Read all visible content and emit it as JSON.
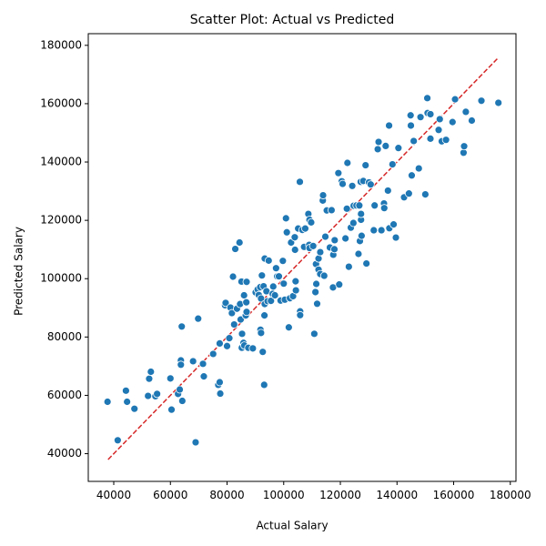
{
  "chart_data": {
    "type": "scatter",
    "title": "Scatter Plot: Actual vs Predicted",
    "xlabel": "Actual Salary",
    "ylabel": "Predicted Salary",
    "xlim": [
      31000,
      182000
    ],
    "ylim": [
      30500,
      184000
    ],
    "xticks": [
      40000,
      60000,
      80000,
      100000,
      120000,
      140000,
      160000,
      180000
    ],
    "yticks": [
      40000,
      60000,
      80000,
      100000,
      120000,
      140000,
      160000,
      180000
    ],
    "xtick_labels": [
      "40000",
      "60000",
      "80000",
      "100000",
      "120000",
      "140000",
      "160000",
      "180000"
    ],
    "ytick_labels": [
      "40000",
      "60000",
      "80000",
      "100000",
      "120000",
      "140000",
      "160000",
      "180000"
    ],
    "grid": false,
    "point_color": "#1f77b4",
    "point_edge_color": "#ffffff",
    "reference_line": {
      "style": "dashed",
      "color": "#d62728",
      "x": [
        38000,
        175500
      ],
      "y": [
        38000,
        175500
      ]
    },
    "series": [
      {
        "points": [
          [
            37800,
            57800
          ],
          [
            41400,
            44600
          ],
          [
            44300,
            61600
          ],
          [
            44700,
            57800
          ],
          [
            47300,
            55400
          ],
          [
            52100,
            59800
          ],
          [
            52500,
            65700
          ],
          [
            53100,
            68100
          ],
          [
            54700,
            59700
          ],
          [
            55300,
            60500
          ],
          [
            60000,
            65800
          ],
          [
            60400,
            55100
          ],
          [
            62700,
            60500
          ],
          [
            63300,
            62000
          ],
          [
            63700,
            72000
          ],
          [
            63700,
            70500
          ],
          [
            64000,
            83600
          ],
          [
            64200,
            58100
          ],
          [
            68000,
            71700
          ],
          [
            68900,
            43900
          ],
          [
            69800,
            86300
          ],
          [
            71500,
            70800
          ],
          [
            71800,
            66500
          ],
          [
            75100,
            74200
          ],
          [
            76900,
            63600
          ],
          [
            77400,
            64500
          ],
          [
            77400,
            77800
          ],
          [
            77600,
            60600
          ],
          [
            79300,
            90900
          ],
          [
            79500,
            91700
          ],
          [
            80000,
            76900
          ],
          [
            80800,
            79600
          ],
          [
            81200,
            90100
          ],
          [
            81700,
            88200
          ],
          [
            82100,
            100700
          ],
          [
            82500,
            84300
          ],
          [
            82900,
            110200
          ],
          [
            83500,
            89700
          ],
          [
            84400,
            112400
          ],
          [
            84600,
            91300
          ],
          [
            84800,
            86000
          ],
          [
            85100,
            99000
          ],
          [
            85200,
            76300
          ],
          [
            85300,
            81100
          ],
          [
            85800,
            78000
          ],
          [
            86000,
            94300
          ],
          [
            86100,
            77100
          ],
          [
            86600,
            87400
          ],
          [
            86800,
            91900
          ],
          [
            86900,
            88600
          ],
          [
            86900,
            98900
          ],
          [
            87500,
            76300
          ],
          [
            89100,
            76100
          ],
          [
            90100,
            95300
          ],
          [
            90800,
            96300
          ],
          [
            91200,
            94400
          ],
          [
            91700,
            97100
          ],
          [
            91800,
            82500
          ],
          [
            92000,
            93200
          ],
          [
            92000,
            81400
          ],
          [
            92300,
            101100
          ],
          [
            92600,
            74900
          ],
          [
            92900,
            97400
          ],
          [
            93100,
            63600
          ],
          [
            93200,
            87400
          ],
          [
            93300,
            91300
          ],
          [
            93300,
            106900
          ],
          [
            93900,
            95700
          ],
          [
            94300,
            92300
          ],
          [
            94700,
            106200
          ],
          [
            95500,
            92400
          ],
          [
            96100,
            94800
          ],
          [
            96300,
            97300
          ],
          [
            96900,
            94300
          ],
          [
            97300,
            103600
          ],
          [
            97700,
            100800
          ],
          [
            98300,
            100800
          ],
          [
            98900,
            92500
          ],
          [
            99700,
            106100
          ],
          [
            100000,
            98300
          ],
          [
            100400,
            92800
          ],
          [
            100800,
            120700
          ],
          [
            101100,
            115900
          ],
          [
            101800,
            83300
          ],
          [
            102200,
            93300
          ],
          [
            102600,
            112400
          ],
          [
            103300,
            94000
          ],
          [
            103900,
            114200
          ],
          [
            104000,
            109900
          ],
          [
            104200,
            99100
          ],
          [
            104300,
            96000
          ],
          [
            105100,
            117200
          ],
          [
            105700,
            133200
          ],
          [
            105800,
            88800
          ],
          [
            105800,
            87500
          ],
          [
            106600,
            116700
          ],
          [
            107200,
            110900
          ],
          [
            107600,
            117200
          ],
          [
            108700,
            122200
          ],
          [
            109000,
            111600
          ],
          [
            109100,
            110500
          ],
          [
            109100,
            120200
          ],
          [
            109700,
            119300
          ],
          [
            110400,
            111200
          ],
          [
            110800,
            81100
          ],
          [
            111200,
            95400
          ],
          [
            111400,
            105000
          ],
          [
            111500,
            98200
          ],
          [
            111800,
            91400
          ],
          [
            112300,
            106900
          ],
          [
            112300,
            103100
          ],
          [
            112900,
            101600
          ],
          [
            112900,
            109100
          ],
          [
            113800,
            126800
          ],
          [
            113900,
            128600
          ],
          [
            114300,
            101000
          ],
          [
            114700,
            114400
          ],
          [
            115200,
            123400
          ],
          [
            116300,
            110700
          ],
          [
            116900,
            123500
          ],
          [
            117400,
            97000
          ],
          [
            117500,
            108200
          ],
          [
            117900,
            110100
          ],
          [
            118000,
            113200
          ],
          [
            119300,
            136200
          ],
          [
            119600,
            98000
          ],
          [
            120500,
            133400
          ],
          [
            120800,
            132500
          ],
          [
            121800,
            113800
          ],
          [
            122300,
            124000
          ],
          [
            122500,
            139700
          ],
          [
            123000,
            104100
          ],
          [
            123700,
            117500
          ],
          [
            124200,
            131800
          ],
          [
            124600,
            119100
          ],
          [
            124700,
            125000
          ],
          [
            125700,
            125100
          ],
          [
            126400,
            108500
          ],
          [
            126700,
            125100
          ],
          [
            126900,
            112900
          ],
          [
            127200,
            133200
          ],
          [
            127300,
            120200
          ],
          [
            127300,
            122200
          ],
          [
            127500,
            114700
          ],
          [
            128100,
            133500
          ],
          [
            128900,
            138900
          ],
          [
            129200,
            105200
          ],
          [
            130100,
            133000
          ],
          [
            130700,
            132300
          ],
          [
            131800,
            116600
          ],
          [
            132100,
            125100
          ],
          [
            133200,
            144400
          ],
          [
            133500,
            146900
          ],
          [
            134500,
            116600
          ],
          [
            135400,
            125800
          ],
          [
            135500,
            124200
          ],
          [
            136000,
            145500
          ],
          [
            136800,
            130200
          ],
          [
            137200,
            152500
          ],
          [
            137300,
            117300
          ],
          [
            138400,
            139200
          ],
          [
            138800,
            118600
          ],
          [
            139600,
            114100
          ],
          [
            140500,
            144800
          ],
          [
            142500,
            127900
          ],
          [
            144200,
            129200
          ],
          [
            144800,
            156000
          ],
          [
            144900,
            152500
          ],
          [
            145200,
            135400
          ],
          [
            145900,
            147200
          ],
          [
            147700,
            137800
          ],
          [
            148300,
            155400
          ],
          [
            150000,
            128900
          ],
          [
            150700,
            161900
          ],
          [
            150800,
            156800
          ],
          [
            151800,
            156400
          ],
          [
            151800,
            148000
          ],
          [
            154700,
            151000
          ],
          [
            155100,
            154700
          ],
          [
            155800,
            147100
          ],
          [
            157300,
            147600
          ],
          [
            159600,
            153700
          ],
          [
            160500,
            161500
          ],
          [
            163500,
            143200
          ],
          [
            163700,
            145400
          ],
          [
            164300,
            157200
          ],
          [
            166400,
            154200
          ],
          [
            169800,
            161000
          ],
          [
            175800,
            160300
          ]
        ]
      }
    ]
  }
}
